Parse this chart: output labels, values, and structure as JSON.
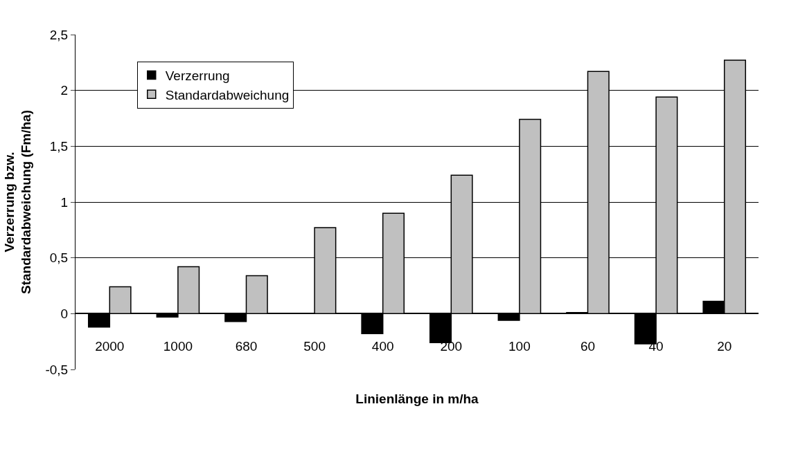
{
  "chart_data": {
    "type": "bar",
    "xlabel": "Linienlänge in m/ha",
    "ylabel": "Verzerrung bzw.\nStandardabweichung (Fm/ha)",
    "categories": [
      "2000",
      "1000",
      "680",
      "500",
      "400",
      "200",
      "100",
      "60",
      "40",
      "20"
    ],
    "series": [
      {
        "name": "Verzerrung",
        "color": "#000000",
        "values": [
          -0.12,
          -0.03,
          -0.07,
          0,
          -0.18,
          -0.26,
          -0.06,
          0.01,
          -0.27,
          0.11
        ]
      },
      {
        "name": "Standardabweichung",
        "color": "#c0c0c0",
        "values": [
          0.24,
          0.42,
          0.34,
          0.77,
          0.9,
          1.24,
          1.74,
          2.17,
          1.94,
          2.27
        ]
      }
    ],
    "ylim": [
      -0.5,
      2.5
    ],
    "yticks": [
      {
        "value": -0.5,
        "label": "-0,5"
      },
      0,
      {
        "value": 0.5,
        "label": "0,5"
      },
      1,
      {
        "value": 1.5,
        "label": "1,5"
      },
      2,
      {
        "value": 2.5,
        "label": "2,5"
      }
    ],
    "grid": "y",
    "legend": "top left"
  }
}
